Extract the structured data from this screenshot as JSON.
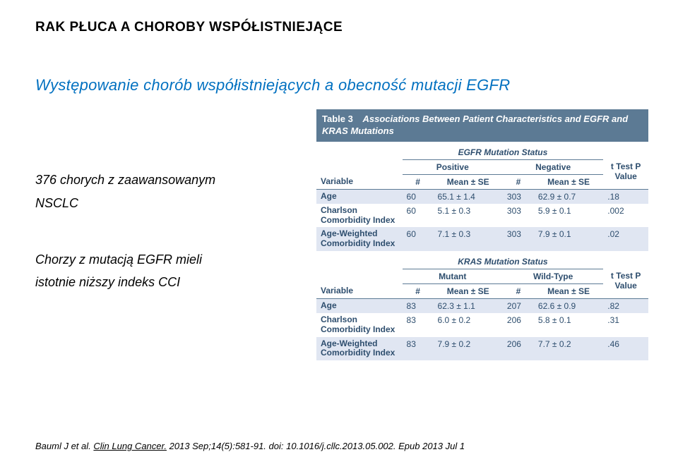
{
  "slideTitle": "RAK PŁUCA A CHOROBY WSPÓŁISTNIEJĄCE",
  "subtitle": "Występowanie chorób współistniejących a obecność mutacji EGFR",
  "leftText": {
    "line1": "376 chorych z zaawansowanym",
    "line2": "NSCLC",
    "line3": "Chorzy z mutacją EGFR mieli",
    "line4": "istotnie niższy indeks CCI"
  },
  "citation": {
    "author": "Bauml J et al.",
    "journal": "Clin Lung Cancer.",
    "rest": "2013 Sep;14(5):581-91. doi: 10.1016/j.cllc.2013.05.002. Epub 2013 Jul 1"
  },
  "table": {
    "captionLabel": "Table 3",
    "captionText": "Associations Between Patient Characteristics and EGFR and KRAS Mutations",
    "colors": {
      "captionBg": "#5c7a94",
      "captionText": "#ffffff",
      "stripe": "#e0e6f2",
      "text": "#2e4e6e"
    },
    "section1": {
      "title": "EGFR Mutation Status",
      "posLabel": "Positive",
      "negLabel": "Negative",
      "hdr": {
        "variable": "Variable",
        "n": "#",
        "mean": "Mean ± SE",
        "pval": "t Test P Value"
      },
      "rows": [
        {
          "var": "Age",
          "posN": "60",
          "posM": "65.1 ± 1.4",
          "negN": "303",
          "negM": "62.9 ± 0.7",
          "p": ".18"
        },
        {
          "var": "Charlson Comorbidity Index",
          "posN": "60",
          "posM": "5.1 ± 0.3",
          "negN": "303",
          "negM": "5.9 ± 0.1",
          "p": ".002"
        },
        {
          "var": "Age-Weighted Comorbidity Index",
          "posN": "60",
          "posM": "7.1 ± 0.3",
          "negN": "303",
          "negM": "7.9 ± 0.1",
          "p": ".02"
        }
      ]
    },
    "section2": {
      "title": "KRAS Mutation Status",
      "posLabel": "Mutant",
      "negLabel": "Wild-Type",
      "hdr": {
        "variable": "Variable",
        "n": "#",
        "mean": "Mean ± SE",
        "pval": "t Test P Value"
      },
      "rows": [
        {
          "var": "Age",
          "posN": "83",
          "posM": "62.3 ± 1.1",
          "negN": "207",
          "negM": "62.6 ± 0.9",
          "p": ".82"
        },
        {
          "var": "Charlson Comorbidity Index",
          "posN": "83",
          "posM": "6.0 ± 0.2",
          "negN": "206",
          "negM": "5.8 ± 0.1",
          "p": ".31"
        },
        {
          "var": "Age-Weighted Comorbidity Index",
          "posN": "83",
          "posM": "7.9 ± 0.2",
          "negN": "206",
          "negM": "7.7 ± 0.2",
          "p": ".46"
        }
      ]
    }
  }
}
